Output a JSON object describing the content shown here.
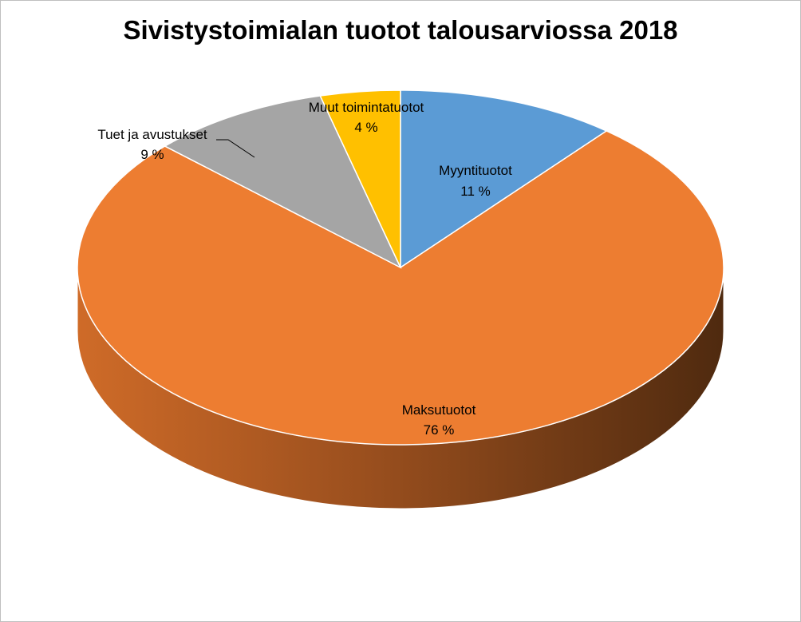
{
  "chart_data": {
    "type": "pie",
    "title": "Sivistystoimialan tuotot talousarviossa 2018",
    "style": "3d",
    "slices": [
      {
        "name": "Myyntituotot",
        "value": 11,
        "label": "11 %",
        "color": "#5b9bd5"
      },
      {
        "name": "Maksutuotot",
        "value": 76,
        "label": "76 %",
        "color": "#ed7d31"
      },
      {
        "name": "Tuet ja avustukset",
        "value": 9,
        "label": "9 %",
        "color": "#a5a5a5"
      },
      {
        "name": "Muut toimintatuotot",
        "value": 4,
        "label": "4 %",
        "color": "#ffc000"
      }
    ]
  }
}
